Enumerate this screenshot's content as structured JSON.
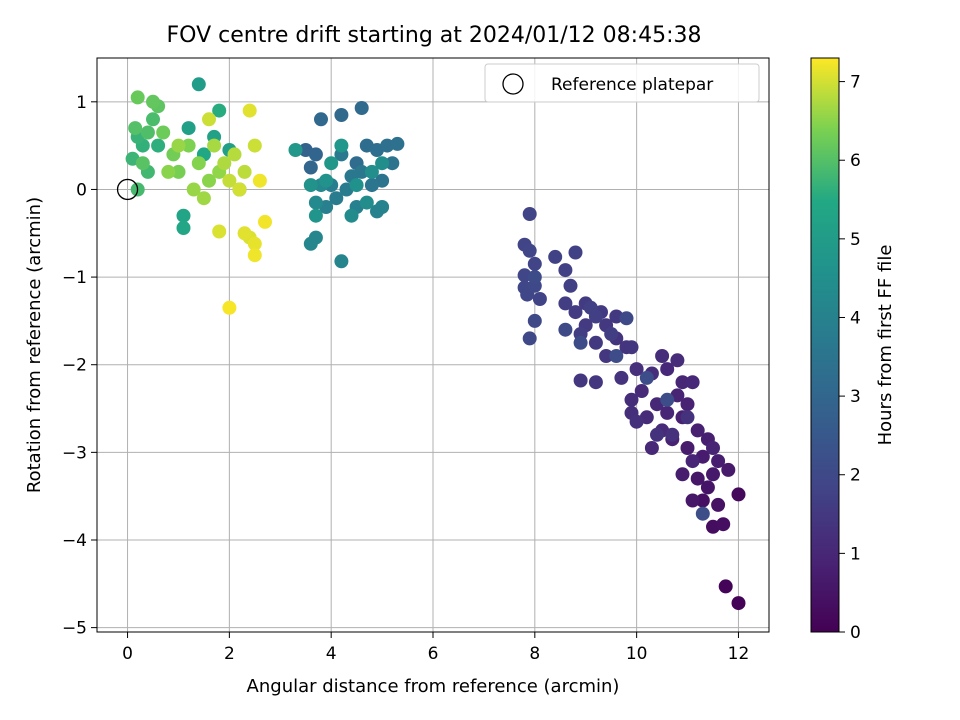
{
  "chart_data": {
    "type": "scatter",
    "title": "FOV centre drift starting at 2024/01/12 08:45:38",
    "xlabel": "Angular distance from reference (arcmin)",
    "ylabel": "Rotation from reference (arcmin)",
    "xlim": [
      -0.6,
      12.6
    ],
    "ylim": [
      -5.05,
      1.5
    ],
    "xticks": [
      0,
      2,
      4,
      6,
      8,
      10,
      12
    ],
    "yticks": [
      -5,
      -4,
      -3,
      -2,
      -1,
      0,
      1
    ],
    "grid": true,
    "legend": {
      "placement": "top-right",
      "entries": [
        "Reference platepar"
      ]
    },
    "reference_point": {
      "x": 0,
      "y": 0
    },
    "colorbar": {
      "label": "Hours from first FF file",
      "range": [
        0,
        7.3
      ],
      "ticks": [
        0,
        1,
        2,
        3,
        4,
        5,
        6,
        7
      ],
      "colormap": "viridis"
    },
    "points": [
      [
        12.0,
        -4.72,
        0.05
      ],
      [
        11.75,
        -4.53,
        0.1
      ],
      [
        12.0,
        -3.48,
        0.2
      ],
      [
        11.5,
        -3.85,
        0.3
      ],
      [
        11.7,
        -3.82,
        0.35
      ],
      [
        11.3,
        -3.55,
        0.4
      ],
      [
        11.6,
        -3.6,
        0.45
      ],
      [
        11.4,
        -3.4,
        0.5
      ],
      [
        11.2,
        -3.3,
        0.55
      ],
      [
        11.1,
        -3.55,
        0.6
      ],
      [
        11.5,
        -3.25,
        0.62
      ],
      [
        11.8,
        -3.2,
        0.65
      ],
      [
        11.3,
        -3.05,
        0.68
      ],
      [
        11.0,
        -2.95,
        0.7
      ],
      [
        10.9,
        -3.25,
        0.72
      ],
      [
        11.6,
        -3.1,
        0.75
      ],
      [
        11.4,
        -2.85,
        0.78
      ],
      [
        11.2,
        -2.75,
        0.8
      ],
      [
        10.9,
        -2.6,
        0.82
      ],
      [
        10.7,
        -2.85,
        0.85
      ],
      [
        11.0,
        -2.45,
        0.88
      ],
      [
        10.8,
        -2.35,
        0.9
      ],
      [
        11.5,
        -2.95,
        0.92
      ],
      [
        11.1,
        -3.1,
        0.94
      ],
      [
        10.6,
        -2.55,
        0.96
      ],
      [
        10.9,
        -2.2,
        0.98
      ],
      [
        11.1,
        -2.2,
        1.0
      ],
      [
        10.4,
        -2.45,
        1.02
      ],
      [
        10.6,
        -2.05,
        1.04
      ],
      [
        10.3,
        -2.95,
        1.06
      ],
      [
        10.5,
        -2.75,
        1.08
      ],
      [
        10.1,
        -2.3,
        1.1
      ],
      [
        10.2,
        -2.6,
        1.12
      ],
      [
        10.8,
        -1.95,
        1.14
      ],
      [
        10.5,
        -1.9,
        1.16
      ],
      [
        9.9,
        -2.4,
        1.18
      ],
      [
        10.3,
        -2.1,
        1.2
      ],
      [
        10.0,
        -2.05,
        1.22
      ],
      [
        9.9,
        -2.55,
        1.24
      ],
      [
        10.0,
        -2.65,
        1.26
      ],
      [
        10.7,
        -2.8,
        1.28
      ],
      [
        11.0,
        -2.6,
        1.3
      ],
      [
        10.4,
        -2.8,
        1.32
      ],
      [
        9.7,
        -2.15,
        1.34
      ],
      [
        9.8,
        -1.8,
        1.36
      ],
      [
        9.6,
        -1.7,
        1.38
      ],
      [
        9.9,
        -1.8,
        1.4
      ],
      [
        9.4,
        -1.9,
        1.42
      ],
      [
        9.2,
        -2.2,
        1.44
      ],
      [
        8.9,
        -2.18,
        1.46
      ],
      [
        9.4,
        -1.55,
        1.48
      ],
      [
        9.6,
        -1.45,
        1.5
      ],
      [
        9.2,
        -1.75,
        1.52
      ],
      [
        9.0,
        -1.55,
        1.54
      ],
      [
        9.3,
        -1.4,
        1.56
      ],
      [
        9.0,
        -1.3,
        1.58
      ],
      [
        8.8,
        -1.4,
        1.6
      ],
      [
        8.6,
        -1.3,
        1.62
      ],
      [
        8.9,
        -1.65,
        1.64
      ],
      [
        9.5,
        -1.65,
        1.66
      ],
      [
        9.2,
        -1.45,
        1.68
      ],
      [
        8.7,
        -1.1,
        1.7
      ],
      [
        9.1,
        -1.35,
        1.72
      ],
      [
        8.6,
        -0.92,
        1.74
      ],
      [
        8.8,
        -0.72,
        1.76
      ],
      [
        8.4,
        -0.77,
        1.78
      ],
      [
        8.1,
        -1.25,
        1.8
      ],
      [
        8.0,
        -0.85,
        1.82
      ],
      [
        7.9,
        -0.28,
        1.84
      ],
      [
        7.8,
        -0.63,
        1.86
      ],
      [
        7.9,
        -0.7,
        1.88
      ],
      [
        7.8,
        -0.98,
        1.9
      ],
      [
        7.8,
        -1.12,
        1.92
      ],
      [
        7.85,
        -1.2,
        1.94
      ],
      [
        8.0,
        -1.1,
        1.96
      ],
      [
        7.9,
        -1.7,
        1.98
      ],
      [
        8.0,
        -1.5,
        2.0
      ],
      [
        9.8,
        -1.47,
        2.02
      ],
      [
        8.6,
        -1.6,
        2.04
      ],
      [
        8.0,
        -1.0,
        2.06
      ],
      [
        9.6,
        -1.9,
        2.08
      ],
      [
        8.9,
        -1.75,
        2.1
      ],
      [
        10.2,
        -2.15,
        2.12
      ],
      [
        10.6,
        -2.4,
        2.14
      ],
      [
        11.3,
        -3.7,
        2.16
      ],
      [
        3.5,
        0.45,
        2.9
      ],
      [
        3.7,
        0.4,
        2.95
      ],
      [
        3.6,
        0.25,
        3.0
      ],
      [
        3.8,
        0.8,
        3.05
      ],
      [
        4.2,
        0.85,
        3.1
      ],
      [
        4.6,
        0.93,
        3.15
      ],
      [
        4.5,
        0.3,
        3.2
      ],
      [
        4.7,
        0.5,
        3.25
      ],
      [
        4.9,
        0.45,
        3.3
      ],
      [
        5.1,
        0.5,
        3.35
      ],
      [
        5.3,
        0.52,
        3.4
      ],
      [
        5.2,
        0.3,
        3.45
      ],
      [
        5.0,
        0.1,
        3.5
      ],
      [
        4.8,
        0.05,
        3.55
      ],
      [
        4.6,
        0.2,
        3.6
      ],
      [
        4.4,
        0.15,
        3.65
      ],
      [
        4.2,
        0.4,
        3.7
      ],
      [
        4.3,
        0.0,
        3.75
      ],
      [
        4.1,
        -0.1,
        3.8
      ],
      [
        4.0,
        0.05,
        3.85
      ],
      [
        3.9,
        -0.2,
        3.9
      ],
      [
        4.5,
        -0.2,
        3.95
      ],
      [
        4.9,
        -0.25,
        4.0
      ],
      [
        5.0,
        -0.2,
        4.05
      ],
      [
        4.2,
        -0.82,
        4.1
      ],
      [
        3.7,
        -0.55,
        4.15
      ],
      [
        3.6,
        -0.62,
        4.2
      ],
      [
        3.8,
        0.05,
        4.25
      ],
      [
        3.7,
        -0.15,
        4.3
      ],
      [
        4.4,
        -0.3,
        4.35
      ],
      [
        4.7,
        -0.15,
        4.4
      ],
      [
        5.0,
        0.3,
        4.45
      ],
      [
        4.8,
        0.2,
        4.5
      ],
      [
        4.5,
        0.05,
        4.55
      ],
      [
        3.9,
        0.1,
        4.6
      ],
      [
        3.6,
        0.05,
        4.65
      ],
      [
        3.7,
        -0.3,
        4.7
      ],
      [
        4.2,
        0.5,
        4.75
      ],
      [
        4.0,
        0.3,
        4.8
      ],
      [
        3.3,
        0.45,
        4.85
      ],
      [
        1.4,
        1.2,
        5.0
      ],
      [
        2.0,
        0.45,
        5.1
      ],
      [
        1.2,
        0.7,
        5.15
      ],
      [
        1.7,
        0.6,
        5.2
      ],
      [
        1.1,
        -0.3,
        5.3
      ],
      [
        1.1,
        -0.44,
        5.4
      ],
      [
        1.5,
        0.4,
        5.45
      ],
      [
        2.2,
        0.0,
        5.5
      ],
      [
        1.8,
        0.9,
        5.55
      ],
      [
        0.6,
        0.5,
        5.6
      ],
      [
        0.3,
        0.5,
        5.65
      ],
      [
        0.2,
        0.6,
        5.7
      ],
      [
        0.1,
        0.35,
        5.75
      ],
      [
        0.4,
        0.2,
        5.8
      ],
      [
        0.2,
        0.0,
        5.85
      ],
      [
        0.5,
        0.8,
        5.9
      ],
      [
        0.4,
        0.65,
        5.95
      ],
      [
        0.15,
        0.7,
        6.0
      ],
      [
        0.3,
        0.3,
        6.05
      ],
      [
        0.6,
        0.95,
        6.1
      ],
      [
        0.5,
        1.0,
        6.15
      ],
      [
        0.2,
        1.05,
        6.2
      ],
      [
        0.7,
        0.65,
        6.25
      ],
      [
        0.9,
        0.4,
        6.3
      ],
      [
        1.0,
        0.2,
        6.35
      ],
      [
        1.2,
        0.5,
        6.4
      ],
      [
        1.4,
        0.3,
        6.45
      ],
      [
        1.6,
        0.1,
        6.5
      ],
      [
        1.8,
        0.2,
        6.55
      ],
      [
        1.3,
        0.0,
        6.6
      ],
      [
        1.5,
        -0.1,
        6.65
      ],
      [
        1.7,
        0.5,
        6.7
      ],
      [
        1.9,
        0.3,
        6.75
      ],
      [
        2.1,
        0.4,
        6.8
      ],
      [
        2.3,
        0.2,
        6.85
      ],
      [
        2.0,
        0.1,
        6.9
      ],
      [
        2.5,
        0.5,
        6.95
      ],
      [
        2.2,
        0.0,
        7.0
      ],
      [
        2.4,
        -0.55,
        7.05
      ],
      [
        2.3,
        -0.5,
        7.1
      ],
      [
        2.5,
        -0.62,
        7.15
      ],
      [
        2.5,
        -0.75,
        7.2
      ],
      [
        2.7,
        -0.37,
        7.22
      ],
      [
        2.0,
        -1.35,
        7.25
      ],
      [
        2.4,
        0.9,
        7.1
      ],
      [
        1.8,
        -0.48,
        7.05
      ],
      [
        1.6,
        0.8,
        6.95
      ],
      [
        1.0,
        0.5,
        6.6
      ],
      [
        0.8,
        0.2,
        6.5
      ],
      [
        2.6,
        0.1,
        7.2
      ]
    ]
  }
}
